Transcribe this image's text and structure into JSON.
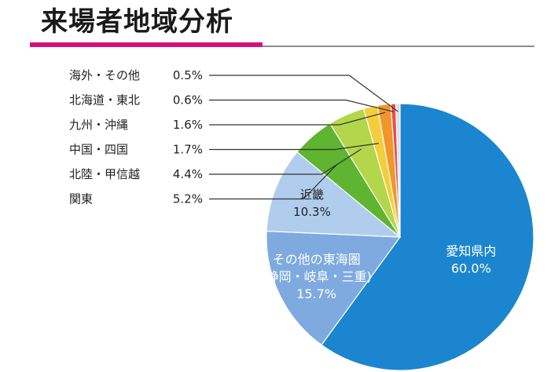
{
  "chart_data": {
    "type": "pie",
    "title": "来場者地域分析",
    "slices": [
      {
        "label": "愛知県内",
        "value": 60.0,
        "value_label": "60.0%",
        "color": "#1b86cf"
      },
      {
        "label": "その他の東海圏",
        "sublabel": "(静岡・岐阜・三重)",
        "value": 15.7,
        "value_label": "15.7%",
        "color": "#7eaadf"
      },
      {
        "label": "近畿",
        "value": 10.3,
        "value_label": "10.3%",
        "color": "#b0cdee"
      },
      {
        "label": "関東",
        "value": 5.2,
        "value_label": "5.2%",
        "color": "#5fb52f"
      },
      {
        "label": "北陸・甲信越",
        "value": 4.4,
        "value_label": "4.4%",
        "color": "#b3d64a"
      },
      {
        "label": "中国・四国",
        "value": 1.7,
        "value_label": "1.7%",
        "color": "#f2cf3a"
      },
      {
        "label": "九州・沖縄",
        "value": 1.6,
        "value_label": "1.6%",
        "color": "#f2962b"
      },
      {
        "label": "北海道・東北",
        "value": 0.6,
        "value_label": "0.6%",
        "color": "#e8504c"
      },
      {
        "label": "海外・その他",
        "value": 0.5,
        "value_label": "0.5%",
        "color": "#dddddd"
      }
    ]
  },
  "colors": {
    "title_accent": "#d4127a",
    "title_rule": "#8c8c8c",
    "leader_line": "#333333"
  }
}
